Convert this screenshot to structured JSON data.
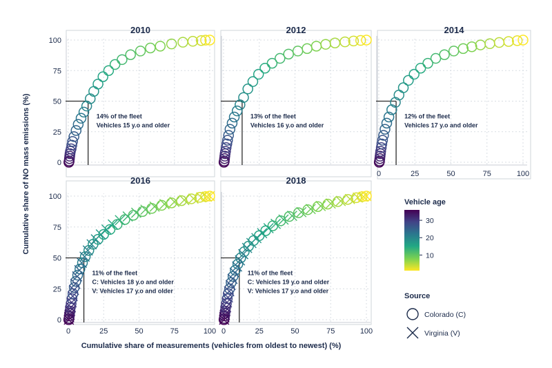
{
  "figure": {
    "y_axis_label": "Cumulative share of NO mass emissions (%)",
    "x_axis_label": "Cumulative share of measurements (vehicles from oldest to newest) (%)"
  },
  "legend": {
    "colorbar_title": "Vehicle age",
    "colorbar_ticks": [
      "30",
      "20",
      "10"
    ],
    "colorbar_range": [
      1,
      36
    ],
    "colors": [
      "#fde725",
      "#7ad151",
      "#22a884",
      "#2a788e",
      "#414487",
      "#440154"
    ],
    "source_title": "Source",
    "colorado_label": "Colorado (C)",
    "virginia_label": "Virginia (V)"
  },
  "chart_data": [
    {
      "type": "scatter",
      "title": "2010",
      "xlim": [
        0,
        100
      ],
      "ylim": [
        0,
        100
      ],
      "x_ticks": [],
      "y_ticks": [
        "0",
        "25",
        "50",
        "75",
        "100"
      ],
      "annotation": [
        "14% of the fleet",
        "Vehicles 15 y.o and older"
      ],
      "marker_x": 14,
      "marker_y": 50,
      "series": [
        {
          "source": "Colorado",
          "marker": "circle",
          "points": [
            [
              0.4,
              0
            ],
            [
              0.6,
              1
            ],
            [
              0.8,
              3
            ],
            [
              1,
              5
            ],
            [
              1.2,
              7
            ],
            [
              1.5,
              9
            ],
            [
              2,
              11
            ],
            [
              2.5,
              14
            ],
            [
              3,
              17
            ],
            [
              4,
              21
            ],
            [
              5.5,
              26
            ],
            [
              7,
              31
            ],
            [
              9,
              36
            ],
            [
              11,
              41
            ],
            [
              13,
              46
            ],
            [
              15.5,
              52
            ],
            [
              18,
              58
            ],
            [
              21,
              64
            ],
            [
              24.5,
              70
            ],
            [
              28.5,
              75
            ],
            [
              33,
              80
            ],
            [
              38,
              84
            ],
            [
              44,
              88
            ],
            [
              51,
              91
            ],
            [
              58,
              93.5
            ],
            [
              65,
              95
            ],
            [
              73,
              96.8
            ],
            [
              81,
              98.2
            ],
            [
              88,
              99
            ],
            [
              94,
              99.6
            ],
            [
              97,
              99.9
            ],
            [
              100,
              100
            ]
          ]
        }
      ]
    },
    {
      "type": "scatter",
      "title": "2012",
      "xlim": [
        0,
        100
      ],
      "ylim": [
        0,
        100
      ],
      "x_ticks": [],
      "y_ticks": [],
      "annotation": [
        "13% of the fleet",
        "Vehicles 16 y.o and older"
      ],
      "marker_x": 13,
      "marker_y": 50,
      "series": [
        {
          "source": "Colorado",
          "marker": "circle",
          "points": [
            [
              0.3,
              0
            ],
            [
              0.5,
              1
            ],
            [
              0.7,
              3
            ],
            [
              0.9,
              5
            ],
            [
              1.1,
              7
            ],
            [
              1.4,
              9
            ],
            [
              1.8,
              12
            ],
            [
              2.3,
              15
            ],
            [
              2.8,
              18
            ],
            [
              3.5,
              22
            ],
            [
              4.5,
              27
            ],
            [
              6,
              32
            ],
            [
              7.5,
              37
            ],
            [
              9.5,
              42
            ],
            [
              11.5,
              47
            ],
            [
              14,
              53
            ],
            [
              17,
              60
            ],
            [
              20.5,
              66
            ],
            [
              24.5,
              72
            ],
            [
              29,
              77
            ],
            [
              34,
              81
            ],
            [
              39.5,
              85
            ],
            [
              45.5,
              88.5
            ],
            [
              52,
              91
            ],
            [
              58.5,
              93
            ],
            [
              65,
              95
            ],
            [
              71.5,
              96.5
            ],
            [
              78,
              97.6
            ],
            [
              85,
              98.5
            ],
            [
              91,
              99.2
            ],
            [
              96,
              99.7
            ],
            [
              100,
              100
            ]
          ]
        }
      ]
    },
    {
      "type": "scatter",
      "title": "2014",
      "xlim": [
        0,
        100
      ],
      "ylim": [
        0,
        100
      ],
      "x_ticks": [
        "0",
        "25",
        "50",
        "75",
        "100"
      ],
      "y_ticks": [],
      "annotation": [
        "12% of the fleet",
        "Vehicles 17 y.o and older"
      ],
      "marker_x": 12,
      "marker_y": 50,
      "series": [
        {
          "source": "Colorado",
          "marker": "circle",
          "points": [
            [
              0.3,
              0
            ],
            [
              0.5,
              1
            ],
            [
              0.7,
              3
            ],
            [
              0.9,
              5
            ],
            [
              1.1,
              7
            ],
            [
              1.3,
              9
            ],
            [
              1.7,
              12
            ],
            [
              2.1,
              15
            ],
            [
              2.6,
              18
            ],
            [
              3.3,
              22
            ],
            [
              4.3,
              27
            ],
            [
              5.5,
              32
            ],
            [
              7,
              37
            ],
            [
              9,
              43
            ],
            [
              11.5,
              49
            ],
            [
              14,
              55
            ],
            [
              17,
              61
            ],
            [
              20.5,
              67
            ],
            [
              24.5,
              72
            ],
            [
              29,
              77
            ],
            [
              34,
              81
            ],
            [
              39.5,
              85
            ],
            [
              45.5,
              88
            ],
            [
              52,
              91
            ],
            [
              58.5,
              93
            ],
            [
              64.5,
              94.5
            ],
            [
              70.5,
              96
            ],
            [
              77,
              97
            ],
            [
              83.5,
              98
            ],
            [
              90,
              98.8
            ],
            [
              96,
              99.5
            ],
            [
              100,
              100
            ]
          ]
        }
      ]
    },
    {
      "type": "scatter",
      "title": "2016",
      "xlim": [
        0,
        100
      ],
      "ylim": [
        0,
        100
      ],
      "x_ticks": [
        "0",
        "25",
        "50",
        "75",
        "100"
      ],
      "y_ticks": [
        "0",
        "25",
        "50",
        "75",
        "100"
      ],
      "annotation": [
        "11% of the fleet",
        "C: Vehicles 18 y.o and older",
        "V: Vehicles 17 y.o and older"
      ],
      "marker_x": 11,
      "marker_y": 50,
      "series": [
        {
          "source": "Colorado",
          "marker": "circle",
          "points": [
            [
              0.3,
              0
            ],
            [
              0.5,
              1
            ],
            [
              0.7,
              3
            ],
            [
              0.9,
              5
            ],
            [
              1.2,
              7
            ],
            [
              1.5,
              10
            ],
            [
              2,
              13
            ],
            [
              2.6,
              17
            ],
            [
              3.3,
              21
            ],
            [
              4.2,
              26
            ],
            [
              5.3,
              31
            ],
            [
              6.6,
              36
            ],
            [
              8.2,
              41
            ],
            [
              10,
              46
            ],
            [
              12,
              51
            ],
            [
              14.5,
              56
            ],
            [
              17.5,
              61
            ],
            [
              21,
              65
            ],
            [
              25,
              69
            ],
            [
              29.5,
              73
            ],
            [
              34.5,
              77
            ],
            [
              40,
              81
            ],
            [
              46,
              84.5
            ],
            [
              52.5,
              87.5
            ],
            [
              59,
              90
            ],
            [
              66,
              92.5
            ],
            [
              73,
              94.5
            ],
            [
              80,
              96.3
            ],
            [
              87,
              97.8
            ],
            [
              93,
              99
            ],
            [
              97,
              99.6
            ],
            [
              100,
              100
            ]
          ]
        },
        {
          "source": "Virginia",
          "marker": "cross",
          "points": [
            [
              0.4,
              0
            ],
            [
              0.6,
              2
            ],
            [
              0.9,
              4
            ],
            [
              1.3,
              7
            ],
            [
              1.8,
              10
            ],
            [
              2.4,
              14
            ],
            [
              3.1,
              19
            ],
            [
              4,
              24
            ],
            [
              5,
              29
            ],
            [
              6.3,
              35
            ],
            [
              7.8,
              40
            ],
            [
              9.5,
              46
            ],
            [
              11.5,
              51
            ],
            [
              13.8,
              56
            ],
            [
              16.5,
              61
            ],
            [
              19.5,
              65
            ],
            [
              23,
              69
            ],
            [
              27,
              73
            ],
            [
              31.5,
              77
            ],
            [
              36.5,
              80.5
            ],
            [
              42,
              83.5
            ],
            [
              48,
              86.5
            ],
            [
              54.5,
              89
            ],
            [
              61,
              91.5
            ],
            [
              68,
              93.5
            ],
            [
              75,
              95.3
            ],
            [
              82,
              96.8
            ],
            [
              88.5,
              98
            ],
            [
              94,
              99
            ],
            [
              98,
              99.6
            ],
            [
              100,
              100
            ]
          ]
        }
      ]
    },
    {
      "type": "scatter",
      "title": "2018",
      "xlim": [
        0,
        100
      ],
      "ylim": [
        0,
        100
      ],
      "x_ticks": [
        "0",
        "25",
        "50",
        "75",
        "100"
      ],
      "y_ticks": [],
      "annotation": [
        "11% of the fleet",
        "C: Vehicles 19 y.o and older",
        "V: Vehicles 17 y.o and older"
      ],
      "marker_x": 11,
      "marker_y": 50,
      "series": [
        {
          "source": "Colorado",
          "marker": "circle",
          "points": [
            [
              0.3,
              0
            ],
            [
              0.5,
              1
            ],
            [
              0.7,
              3
            ],
            [
              0.9,
              5
            ],
            [
              1.2,
              7
            ],
            [
              1.5,
              10
            ],
            [
              2,
              13
            ],
            [
              2.6,
              17
            ],
            [
              3.3,
              21
            ],
            [
              4.2,
              25
            ],
            [
              5.3,
              30
            ],
            [
              6.6,
              35
            ],
            [
              8.2,
              40
            ],
            [
              10,
              45
            ],
            [
              12,
              50
            ],
            [
              14.5,
              55
            ],
            [
              17.5,
              59.5
            ],
            [
              21,
              64
            ],
            [
              25,
              68
            ],
            [
              29.5,
              72
            ],
            [
              34.5,
              76
            ],
            [
              40,
              80
            ],
            [
              46,
              83.5
            ],
            [
              52.5,
              86.5
            ],
            [
              59,
              89
            ],
            [
              66,
              91.5
            ],
            [
              73,
              93.5
            ],
            [
              80,
              95.5
            ],
            [
              87,
              97.3
            ],
            [
              93,
              98.7
            ],
            [
              97,
              99.5
            ],
            [
              100,
              100
            ]
          ]
        },
        {
          "source": "Virginia",
          "marker": "cross",
          "points": [
            [
              0.4,
              0
            ],
            [
              0.6,
              2
            ],
            [
              0.9,
              4
            ],
            [
              1.3,
              7
            ],
            [
              1.8,
              10
            ],
            [
              2.4,
              14
            ],
            [
              3.1,
              18
            ],
            [
              4,
              23
            ],
            [
              5,
              28
            ],
            [
              6.3,
              33
            ],
            [
              7.8,
              38
            ],
            [
              9.5,
              43
            ],
            [
              11.5,
              48
            ],
            [
              13.8,
              53
            ],
            [
              16.5,
              58
            ],
            [
              19.5,
              62
            ],
            [
              23,
              66
            ],
            [
              27,
              70
            ],
            [
              31.5,
              74
            ],
            [
              36.5,
              77.5
            ],
            [
              42,
              81
            ],
            [
              48,
              84
            ],
            [
              54.5,
              87
            ],
            [
              61,
              89.5
            ],
            [
              68,
              92
            ],
            [
              75,
              94
            ],
            [
              82,
              96
            ],
            [
              88.5,
              97.6
            ],
            [
              94,
              98.8
            ],
            [
              98,
              99.5
            ],
            [
              100,
              100
            ]
          ]
        }
      ]
    }
  ]
}
